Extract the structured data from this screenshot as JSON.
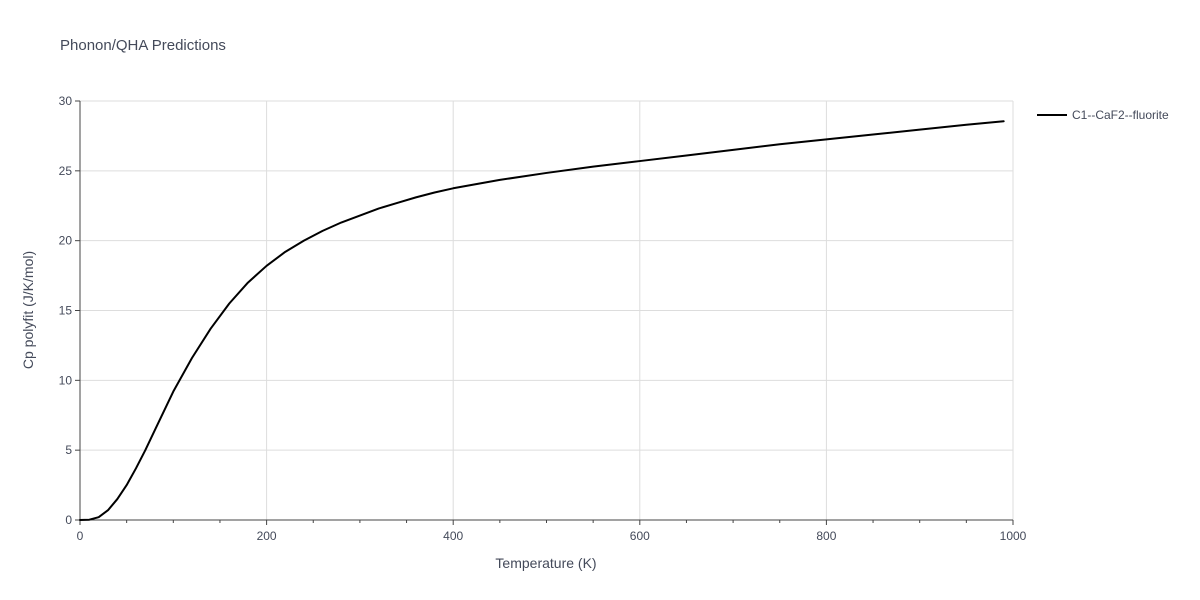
{
  "chart_data": {
    "type": "line",
    "title": "Phonon/QHA Predictions",
    "xlabel": "Temperature (K)",
    "ylabel": "Cp polyfit (J/K/mol)",
    "xlim": [
      0,
      1000
    ],
    "ylim": [
      0,
      30
    ],
    "x_ticks": [
      0,
      200,
      400,
      600,
      800,
      1000
    ],
    "x_tick_labels": [
      "0",
      "200",
      "400",
      "600",
      "800",
      "1000"
    ],
    "x_minor_ticks": [
      50,
      100,
      150,
      250,
      300,
      350,
      450,
      500,
      550,
      650,
      700,
      750,
      850,
      900,
      950
    ],
    "y_ticks": [
      0,
      5,
      10,
      15,
      20,
      25,
      30
    ],
    "y_tick_labels": [
      "0",
      "5",
      "10",
      "15",
      "20",
      "25",
      "30"
    ],
    "grid": true,
    "legend_position": "top-right outside",
    "series": [
      {
        "name": "C1--CaF2--fluorite",
        "color": "#000000",
        "x": [
          0,
          10,
          20,
          30,
          40,
          50,
          60,
          70,
          80,
          90,
          100,
          120,
          140,
          160,
          180,
          200,
          220,
          240,
          260,
          280,
          300,
          320,
          340,
          360,
          380,
          400,
          450,
          500,
          550,
          600,
          650,
          700,
          750,
          800,
          850,
          900,
          950,
          990
        ],
        "y": [
          0,
          0.02,
          0.2,
          0.7,
          1.5,
          2.5,
          3.7,
          5.0,
          6.4,
          7.8,
          9.2,
          11.6,
          13.7,
          15.5,
          17.0,
          18.2,
          19.2,
          20.0,
          20.7,
          21.3,
          21.8,
          22.3,
          22.7,
          23.1,
          23.45,
          23.75,
          24.35,
          24.85,
          25.3,
          25.7,
          26.1,
          26.5,
          26.9,
          27.25,
          27.6,
          27.95,
          28.3,
          28.55
        ]
      }
    ]
  }
}
